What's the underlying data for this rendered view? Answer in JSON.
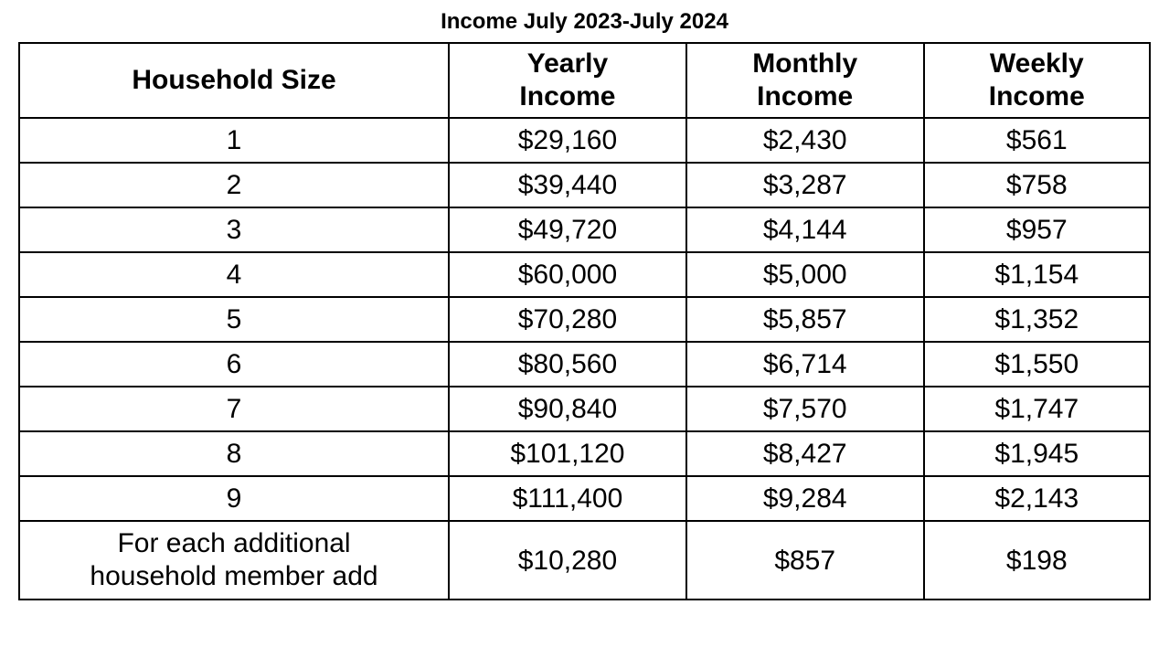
{
  "title": "Income July 2023-July 2024",
  "table": {
    "columns": [
      "Household Size",
      "Yearly Income",
      "Monthly Income",
      "Weekly Income"
    ],
    "column_widths": [
      "38%",
      "21%",
      "21%",
      "20%"
    ],
    "rows": [
      [
        "1",
        "$29,160",
        "$2,430",
        "$561"
      ],
      [
        "2",
        "$39,440",
        "$3,287",
        "$758"
      ],
      [
        "3",
        "$49,720",
        "$4,144",
        "$957"
      ],
      [
        "4",
        "$60,000",
        "$5,000",
        "$1,154"
      ],
      [
        "5",
        "$70,280",
        "$5,857",
        "$1,352"
      ],
      [
        "6",
        "$80,560",
        "$6,714",
        "$1,550"
      ],
      [
        "7",
        "$90,840",
        "$7,570",
        "$1,747"
      ],
      [
        "8",
        "$101,120",
        "$8,427",
        "$1,945"
      ],
      [
        "9",
        "$111,400",
        "$9,284",
        "$2,143"
      ],
      [
        "For each additional household member add",
        "$10,280",
        "$857",
        "$198"
      ]
    ],
    "border_color": "#000000",
    "background_color": "#ffffff",
    "header_fontsize": 30,
    "cell_fontsize": 30,
    "header_fontweight": "bold",
    "text_color": "#000000"
  }
}
